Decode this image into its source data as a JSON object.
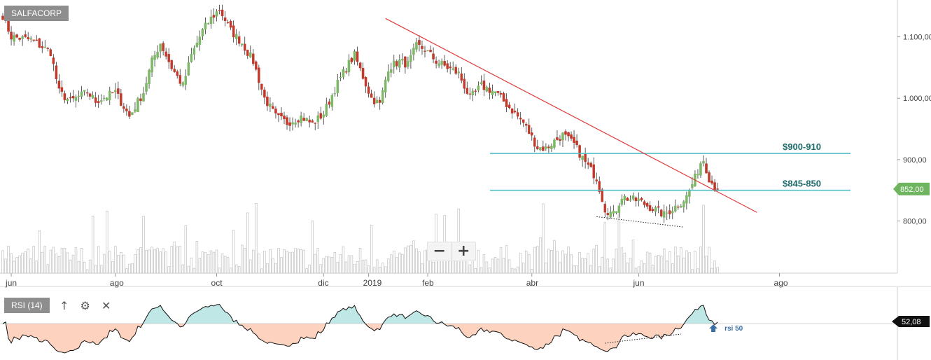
{
  "symbol": "SALFACORP",
  "zoom": {
    "minus": "−",
    "plus": "+"
  },
  "indicator": {
    "label": "RSI (14)",
    "icon_up": "arrow-up-icon",
    "icon_settings": "gear-icon",
    "icon_close": "close-icon"
  },
  "colors": {
    "up": "#7db866",
    "down": "#c0392b",
    "trend": "#e03c3c",
    "support": "#4fc1c4",
    "support_label": "#1e6b6b",
    "price_tag": "#6fb560",
    "rsi_tag": "#111111",
    "rsi_up_fill": "#bfe7e6",
    "rsi_down_fill": "#fdd3bf",
    "rsi50_label": "#3b6ea5"
  },
  "chart_data": [
    {
      "type": "candlestick",
      "title": "SALFACORP",
      "x_tick_labels": [
        "jun",
        "ago",
        "oct",
        "dic",
        "2019",
        "feb",
        "abr",
        "jun",
        "ago"
      ],
      "y_tick_labels": [
        "1.100,00",
        "1.000,00",
        "900,00",
        "800,00"
      ],
      "ylim": [
        715,
        1160
      ],
      "last_price_label": "852,00",
      "levels": [
        {
          "label": "$900-910",
          "value": 910
        },
        {
          "label": "$845-850",
          "value": 850
        }
      ],
      "trendline": {
        "from": {
          "index": 136,
          "value": 1130
        },
        "to": {
          "index": 268,
          "value": 814
        }
      },
      "support_divergence": {
        "from": {
          "index": 211,
          "value": 807
        },
        "to": {
          "index": 242,
          "value": 790
        }
      },
      "closes_anchor_points": [
        [
          0,
          1135
        ],
        [
          3,
          1100
        ],
        [
          10,
          1095
        ],
        [
          17,
          1075
        ],
        [
          20,
          1010
        ],
        [
          24,
          995
        ],
        [
          30,
          1010
        ],
        [
          33,
          995
        ],
        [
          40,
          1010
        ],
        [
          45,
          970
        ],
        [
          50,
          1010
        ],
        [
          53,
          1060
        ],
        [
          56,
          1090
        ],
        [
          60,
          1050
        ],
        [
          64,
          1020
        ],
        [
          67,
          1070
        ],
        [
          71,
          1110
        ],
        [
          74,
          1130
        ],
        [
          77,
          1145
        ],
        [
          81,
          1110
        ],
        [
          85,
          1090
        ],
        [
          89,
          1060
        ],
        [
          93,
          1000
        ],
        [
          97,
          970
        ],
        [
          101,
          960
        ],
        [
          106,
          970
        ],
        [
          110,
          958
        ],
        [
          114,
          975
        ],
        [
          118,
          1015
        ],
        [
          122,
          1050
        ],
        [
          125,
          1070
        ],
        [
          128,
          1035
        ],
        [
          131,
          1000
        ],
        [
          134,
          990
        ],
        [
          137,
          1050
        ],
        [
          141,
          1060
        ],
        [
          144,
          1055
        ],
        [
          147,
          1085
        ],
        [
          150,
          1080
        ],
        [
          154,
          1060
        ],
        [
          158,
          1050
        ],
        [
          162,
          1040
        ],
        [
          166,
          1000
        ],
        [
          170,
          1020
        ],
        [
          175,
          1010
        ],
        [
          180,
          985
        ],
        [
          185,
          960
        ],
        [
          190,
          920
        ],
        [
          193,
          918
        ],
        [
          196,
          930
        ],
        [
          199,
          940
        ],
        [
          203,
          925
        ],
        [
          207,
          895
        ],
        [
          211,
          870
        ],
        [
          214,
          820
        ],
        [
          217,
          810
        ],
        [
          220,
          840
        ],
        [
          223,
          835
        ],
        [
          226,
          833
        ],
        [
          229,
          825
        ],
        [
          232,
          818
        ],
        [
          235,
          810
        ],
        [
          238,
          820
        ],
        [
          241,
          830
        ],
        [
          243,
          840
        ],
        [
          246,
          870
        ],
        [
          248,
          895
        ],
        [
          249,
          900
        ],
        [
          251,
          870
        ],
        [
          253,
          855
        ],
        [
          254,
          852
        ]
      ],
      "data_points": 255,
      "volume": {
        "visible": true
      }
    },
    {
      "type": "line",
      "title": "RSI (14)",
      "last_value_label": "52,08",
      "reference_line": {
        "label": "rsi 50",
        "value": 50
      },
      "divergence": {
        "from": {
          "index": 214,
          "value": 22
        },
        "to": {
          "index": 241,
          "value": 35
        }
      },
      "data_points": 255
    }
  ]
}
